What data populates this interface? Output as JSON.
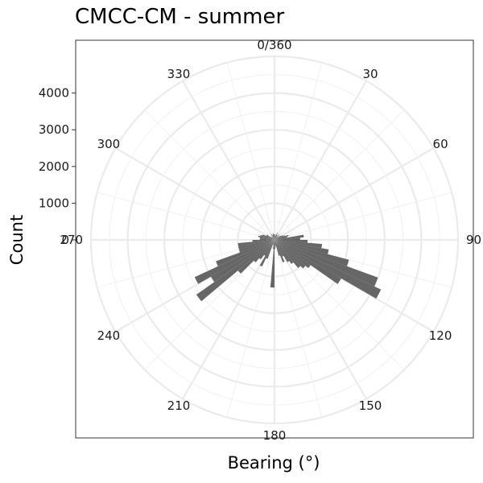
{
  "chart_data": {
    "type": "bar",
    "coordinate_system": "polar",
    "title": "CMCC-CM - summer",
    "xlabel": "Bearing (°)",
    "ylabel": "Count",
    "bin_width_deg": 5,
    "rlim": [
      0,
      5000
    ],
    "y_ticks": [
      "0",
      "1000",
      "2000",
      "3000",
      "4000"
    ],
    "y_tick_values": [
      0,
      1000,
      2000,
      3000,
      4000
    ],
    "bearing_ticks": [
      "0/360",
      "30",
      "60",
      "90",
      "120",
      "150",
      "180",
      "210",
      "240",
      "270",
      "300",
      "330"
    ],
    "bearing_tick_values": [
      0,
      30,
      60,
      90,
      120,
      150,
      180,
      210,
      240,
      270,
      300,
      330
    ],
    "bar_color": "#666666",
    "grid": true,
    "bins": [
      0,
      5,
      10,
      15,
      20,
      25,
      30,
      35,
      40,
      45,
      50,
      55,
      60,
      65,
      70,
      75,
      80,
      85,
      90,
      95,
      100,
      105,
      110,
      115,
      120,
      125,
      130,
      135,
      140,
      145,
      150,
      155,
      160,
      165,
      170,
      175,
      180,
      185,
      190,
      195,
      200,
      205,
      210,
      215,
      220,
      225,
      230,
      235,
      240,
      245,
      250,
      255,
      260,
      265,
      270,
      275,
      280,
      285,
      290,
      295,
      300,
      305,
      310,
      315,
      320,
      325,
      330,
      335,
      340,
      345,
      350,
      355
    ],
    "values": [
      150,
      100,
      120,
      150,
      200,
      150,
      120,
      80,
      200,
      150,
      100,
      200,
      250,
      300,
      400,
      350,
      800,
      700,
      900,
      1300,
      1500,
      2100,
      3000,
      3200,
      2100,
      1200,
      1100,
      1000,
      800,
      700,
      500,
      650,
      450,
      200,
      150,
      250,
      1300,
      250,
      100,
      150,
      550,
      800,
      500,
      650,
      800,
      1300,
      2600,
      2000,
      2400,
      1700,
      1000,
      1000,
      1000,
      600,
      400,
      400,
      450,
      400,
      350,
      250,
      250,
      120,
      120,
      80,
      100,
      180,
      100,
      150,
      150,
      180,
      150,
      150
    ]
  }
}
